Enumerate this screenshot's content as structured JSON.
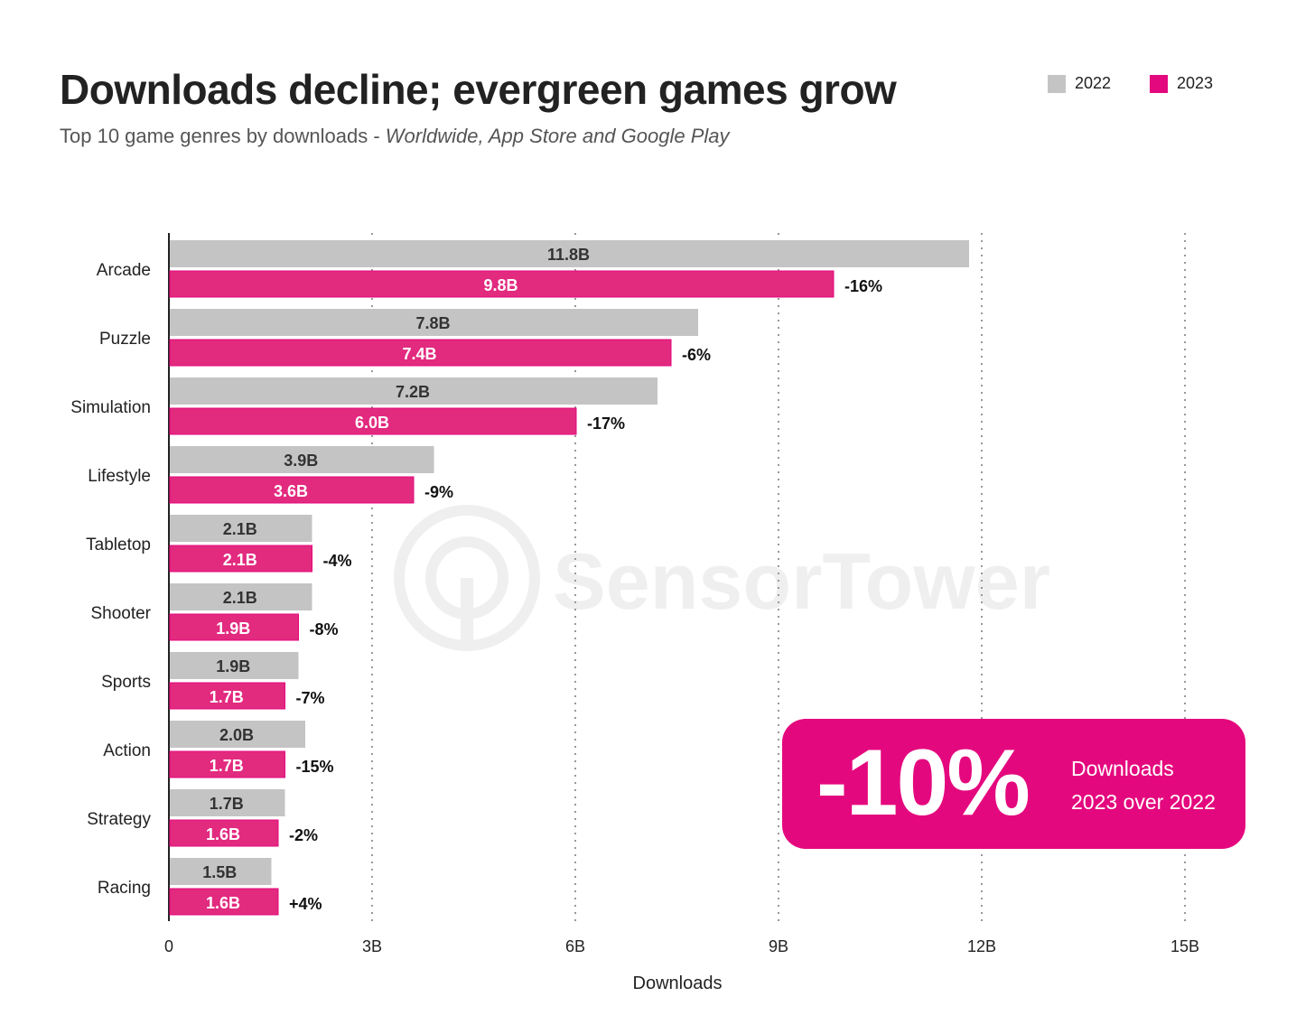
{
  "title": "Downloads decline; evergreen games grow",
  "subtitle_main": "Top 10 game genres by downloads - ",
  "subtitle_italic": "Worldwide, App Store and Google Play",
  "watermark": "SensorTower",
  "colors": {
    "2022": "#c4c4c4",
    "2023": "#e22a7f",
    "legend_2023": "#e4087e",
    "badge": "#e4087e"
  },
  "badge": {
    "value": "-10%",
    "line1": "Downloads",
    "line2": "2023 over 2022"
  },
  "chart_data": {
    "type": "bar",
    "orientation": "horizontal",
    "title": "Downloads decline; evergreen games grow",
    "xlabel": "Downloads",
    "xlim": [
      0,
      15
    ],
    "x_ticks": [
      "0",
      "3B",
      "6B",
      "9B",
      "12B",
      "15B"
    ],
    "x_tick_values": [
      0,
      3,
      6,
      9,
      12,
      15
    ],
    "grid": "vertical dotted",
    "legend_position": "top-right",
    "categories": [
      "Arcade",
      "Puzzle",
      "Simulation",
      "Lifestyle",
      "Tabletop",
      "Shooter",
      "Sports",
      "Action",
      "Strategy",
      "Racing"
    ],
    "series": [
      {
        "name": "2022",
        "values": [
          11.8,
          7.8,
          7.2,
          3.9,
          2.1,
          2.1,
          1.9,
          2.0,
          1.7,
          1.5
        ],
        "labels": [
          "11.8B",
          "7.8B",
          "7.2B",
          "3.9B",
          "2.1B",
          "2.1B",
          "1.9B",
          "2.0B",
          "1.7B",
          "1.5B"
        ]
      },
      {
        "name": "2023",
        "values": [
          9.8,
          7.4,
          6.0,
          3.6,
          2.1,
          1.9,
          1.7,
          1.7,
          1.6,
          1.6
        ],
        "labels": [
          "9.8B",
          "7.4B",
          "6.0B",
          "3.6B",
          "2.1B",
          "1.9B",
          "1.7B",
          "1.7B",
          "1.6B",
          "1.6B"
        ]
      }
    ],
    "change_labels": [
      "-16%",
      "-6%",
      "-17%",
      "-9%",
      "-4%",
      "-8%",
      "-7%",
      "-15%",
      "-2%",
      "+4%"
    ]
  }
}
